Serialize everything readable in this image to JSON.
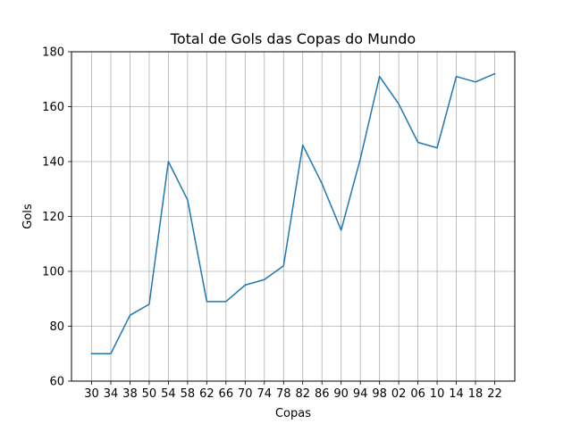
{
  "chart_data": {
    "type": "line",
    "title": "Total de Gols das Copas do Mundo",
    "xlabel": "Copas",
    "ylabel": "Gols",
    "categories": [
      "30",
      "34",
      "38",
      "50",
      "54",
      "58",
      "62",
      "66",
      "70",
      "74",
      "78",
      "82",
      "86",
      "90",
      "94",
      "98",
      "02",
      "06",
      "10",
      "14",
      "18",
      "22"
    ],
    "series": [
      {
        "values": [
          70,
          70,
          84,
          88,
          140,
          126,
          89,
          89,
          95,
          97,
          102,
          146,
          132,
          115,
          141,
          171,
          161,
          147,
          145,
          171,
          169,
          172
        ],
        "color": "#1f77b4"
      }
    ],
    "ylim": [
      60,
      180
    ],
    "yticks": [
      60,
      80,
      100,
      120,
      140,
      160,
      180
    ],
    "grid": true,
    "legend": false
  }
}
